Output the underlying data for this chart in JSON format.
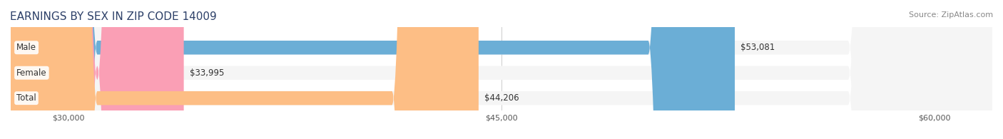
{
  "title": "EARNINGS BY SEX IN ZIP CODE 14009",
  "source": "Source: ZipAtlas.com",
  "categories": [
    "Male",
    "Female",
    "Total"
  ],
  "values": [
    53081,
    33995,
    44206
  ],
  "bar_colors": [
    "#6baed6",
    "#fa9fb5",
    "#fdbe85"
  ],
  "bar_bg_color": "#e8e8e8",
  "label_bg_color": "#ffffff",
  "xlim_min": 28000,
  "xlim_max": 62000,
  "xticks": [
    30000,
    45000,
    60000
  ],
  "xtick_labels": [
    "$30,000",
    "$45,000",
    "$60,000"
  ],
  "value_labels": [
    "$53,081",
    "$33,995",
    "$44,206"
  ],
  "title_color": "#2d4068",
  "source_color": "#888888",
  "title_fontsize": 11,
  "source_fontsize": 8,
  "bar_label_fontsize": 8.5,
  "category_fontsize": 8.5,
  "tick_fontsize": 8,
  "bar_height": 0.55,
  "bg_color": "#f5f5f5"
}
